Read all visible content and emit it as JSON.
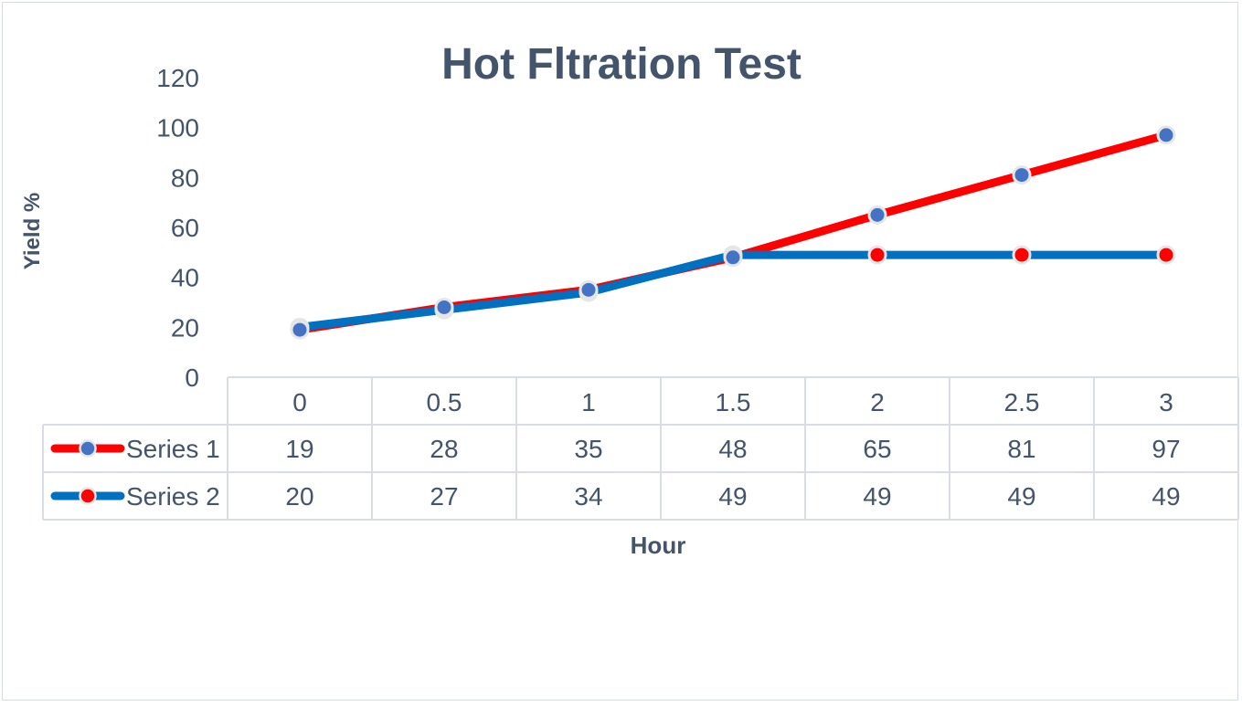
{
  "chart_data": {
    "type": "line",
    "title": "Hot Fltration Test",
    "xlabel": "Hour",
    "ylabel": "Yield %",
    "x": [
      "0",
      "0.5",
      "1",
      "1.5",
      "2",
      "2.5",
      "3"
    ],
    "ylim": [
      0,
      120
    ],
    "yticks": [
      "0",
      "20",
      "40",
      "60",
      "80",
      "100",
      "120"
    ],
    "grid": false,
    "legend": "data-table",
    "series": [
      {
        "name": "Series 1",
        "values": [
          19,
          28,
          35,
          48,
          65,
          81,
          97
        ],
        "line_color": "#ff0000",
        "marker_color": "#4472c4"
      },
      {
        "name": "Series 2",
        "values": [
          20,
          27,
          34,
          49,
          49,
          49,
          49
        ],
        "line_color": "#0070c0",
        "marker_color": "#ff0000"
      }
    ]
  }
}
